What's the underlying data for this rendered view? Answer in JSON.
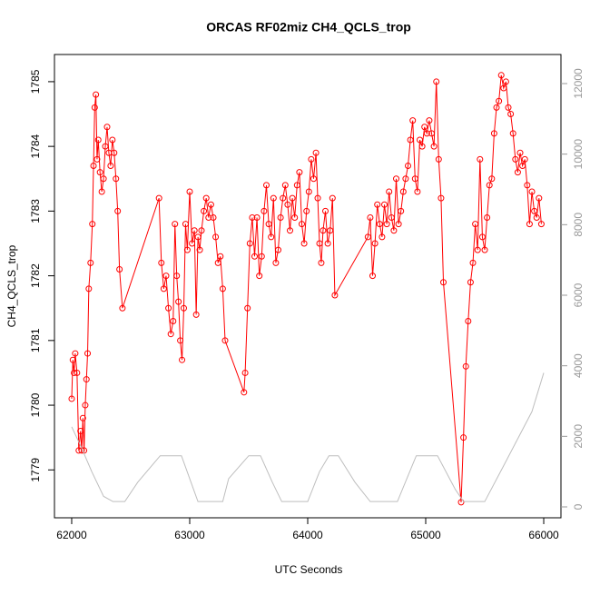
{
  "chart_data": {
    "type": "line",
    "title": "ORCAS RF02miz CH4_QCLS_trop",
    "x_label": "UTC Seconds",
    "y_label": "CH4_QCLS_trop",
    "xlim": [
      61854,
      66146
    ],
    "xticks": [
      62000,
      63000,
      64000,
      65000,
      66000
    ],
    "ylim": [
      1778.26,
      1785.42
    ],
    "yticks": [
      1779,
      1780,
      1781,
      1782,
      1783,
      1784,
      1785
    ],
    "y2lim": [
      -309,
      12824
    ],
    "y2ticks": [
      0,
      2000,
      4000,
      6000,
      8000,
      10000,
      12000
    ],
    "series": [
      {
        "color": "#ff0000",
        "markers": true,
        "x": [
          62000,
          62010,
          62020,
          62030,
          62045,
          62060,
          62075,
          62085,
          62095,
          62105,
          62115,
          62125,
          62135,
          62145,
          62160,
          62175,
          62185,
          62195,
          62205,
          62215,
          62225,
          62240,
          62255,
          62270,
          62285,
          62300,
          62315,
          62330,
          62345,
          62360,
          62375,
          62390,
          62405,
          62430,
          62740,
          62760,
          62780,
          62800,
          62820,
          62840,
          62860,
          62875,
          62890,
          62905,
          62920,
          62935,
          62950,
          62965,
          62980,
          63000,
          63020,
          63040,
          63055,
          63070,
          63085,
          63100,
          63120,
          63140,
          63160,
          63180,
          63200,
          63220,
          63240,
          63260,
          63280,
          63300,
          63460,
          63470,
          63490,
          63510,
          63530,
          63550,
          63570,
          63590,
          63610,
          63630,
          63650,
          63670,
          63690,
          63710,
          63730,
          63750,
          63770,
          63790,
          63810,
          63830,
          63850,
          63870,
          63890,
          63910,
          63930,
          63950,
          63970,
          63990,
          64010,
          64030,
          64050,
          64070,
          64085,
          64100,
          64115,
          64130,
          64150,
          64170,
          64190,
          64210,
          64230,
          64510,
          64530,
          64550,
          64570,
          64590,
          64610,
          64630,
          64650,
          64670,
          64690,
          64710,
          64730,
          64750,
          64770,
          64790,
          64810,
          64830,
          64850,
          64870,
          64890,
          64910,
          64930,
          64950,
          64970,
          64990,
          65010,
          65030,
          65050,
          65070,
          65090,
          65110,
          65130,
          65150,
          65300,
          65320,
          65340,
          65360,
          65380,
          65400,
          65420,
          65440,
          65460,
          65480,
          65500,
          65520,
          65540,
          65560,
          65580,
          65600,
          65620,
          65640,
          65660,
          65680,
          65700,
          65720,
          65740,
          65760,
          65780,
          65800,
          65820,
          65840,
          65860,
          65880,
          65900,
          65920,
          65940,
          65960,
          65980
        ],
        "values": [
          1780.1,
          1780.7,
          1780.5,
          1780.8,
          1780.5,
          1779.3,
          1779.6,
          1779.3,
          1779.8,
          1779.3,
          1780.0,
          1780.4,
          1780.8,
          1781.8,
          1782.2,
          1782.8,
          1783.7,
          1784.6,
          1784.8,
          1783.8,
          1784.1,
          1783.6,
          1783.3,
          1783.5,
          1784.0,
          1784.3,
          1783.9,
          1783.7,
          1784.1,
          1783.9,
          1783.5,
          1783.0,
          1782.1,
          1781.5,
          1783.2,
          1782.2,
          1781.8,
          1782.0,
          1781.5,
          1781.1,
          1781.3,
          1782.8,
          1782.0,
          1781.6,
          1781.0,
          1780.7,
          1781.5,
          1782.8,
          1782.4,
          1783.3,
          1782.5,
          1782.7,
          1781.4,
          1782.6,
          1782.4,
          1782.7,
          1783.0,
          1783.2,
          1782.9,
          1783.1,
          1782.9,
          1782.6,
          1782.2,
          1782.3,
          1781.8,
          1781.0,
          1780.2,
          1780.5,
          1781.5,
          1782.5,
          1782.9,
          1782.3,
          1782.9,
          1782.0,
          1782.3,
          1783.0,
          1783.4,
          1782.8,
          1782.6,
          1783.2,
          1782.2,
          1782.4,
          1782.9,
          1783.2,
          1783.4,
          1783.1,
          1782.7,
          1783.2,
          1782.9,
          1783.4,
          1783.6,
          1782.8,
          1782.5,
          1783.0,
          1783.3,
          1783.8,
          1783.5,
          1783.9,
          1783.2,
          1782.5,
          1782.2,
          1782.7,
          1783.0,
          1782.5,
          1782.7,
          1783.2,
          1781.7,
          1782.6,
          1782.9,
          1782.0,
          1782.5,
          1783.1,
          1782.8,
          1782.6,
          1783.1,
          1782.8,
          1783.3,
          1782.9,
          1782.7,
          1783.5,
          1782.8,
          1783.0,
          1783.3,
          1783.5,
          1783.7,
          1784.1,
          1784.4,
          1783.5,
          1783.3,
          1784.1,
          1784.0,
          1784.3,
          1784.2,
          1784.4,
          1784.2,
          1784.0,
          1785.0,
          1783.8,
          1783.2,
          1781.9,
          1778.5,
          1779.5,
          1780.6,
          1781.3,
          1781.9,
          1782.2,
          1782.8,
          1782.4,
          1783.8,
          1782.6,
          1782.4,
          1782.9,
          1783.4,
          1783.5,
          1784.2,
          1784.6,
          1784.7,
          1785.1,
          1784.9,
          1785.0,
          1784.6,
          1784.5,
          1784.2,
          1783.8,
          1783.6,
          1783.9,
          1783.7,
          1783.8,
          1783.4,
          1782.8,
          1783.3,
          1783.0,
          1782.9,
          1783.2,
          1782.8
        ]
      },
      {
        "color": "#bebebe",
        "axis": "y2",
        "markers": false,
        "x": [
          62000,
          62080,
          62170,
          62270,
          62350,
          62450,
          62560,
          62750,
          62930,
          63000,
          63070,
          63280,
          63330,
          63500,
          63600,
          63700,
          63780,
          64000,
          64100,
          64180,
          64260,
          64400,
          64530,
          64760,
          64920,
          65100,
          65250,
          65320,
          65500,
          65650,
          65900,
          66000
        ],
        "values": [
          2270,
          1700,
          1000,
          300,
          150,
          150,
          700,
          1450,
          1450,
          800,
          150,
          150,
          800,
          1450,
          1450,
          700,
          150,
          150,
          1000,
          1450,
          1450,
          700,
          150,
          150,
          1450,
          1450,
          500,
          150,
          150,
          1100,
          2700,
          3800
        ]
      }
    ]
  }
}
